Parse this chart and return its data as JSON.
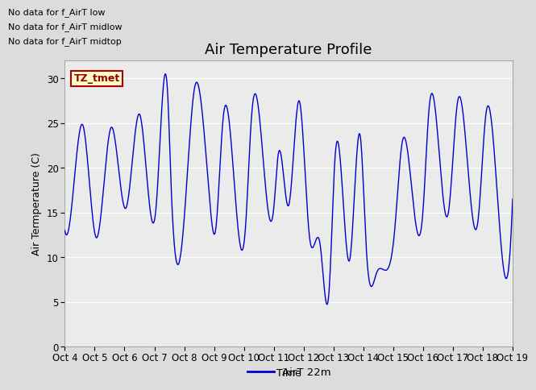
{
  "title": "Air Temperature Profile",
  "xlabel": "Time",
  "ylabel": "Air Termperature (C)",
  "legend_label": "AirT 22m",
  "no_data_texts": [
    "No data for f_AirT low",
    "No data for f_AirT midlow",
    "No data for f_AirT midtop"
  ],
  "tz_label": "TZ_tmet",
  "ylim": [
    0,
    32
  ],
  "yticks": [
    0,
    5,
    10,
    15,
    20,
    25,
    30
  ],
  "x_tick_labels": [
    "Oct 4",
    "Oct 5",
    "Oct 6",
    "Oct 7",
    "Oct 8",
    "Oct 9",
    "Oct 10",
    "Oct 11",
    "Oct 12",
    "Oct 13",
    "Oct 14",
    "Oct 15",
    "Oct 16",
    "Oct 17",
    "Oct 18",
    "Oct 19"
  ],
  "line_color": "#0000cc",
  "bg_color": "#dcdcdc",
  "plot_bg_color": "#ebebeb",
  "title_fontsize": 13,
  "label_fontsize": 9,
  "tick_fontsize": 8.5,
  "no_data_fontsize": 8,
  "tz_fontsize": 9
}
